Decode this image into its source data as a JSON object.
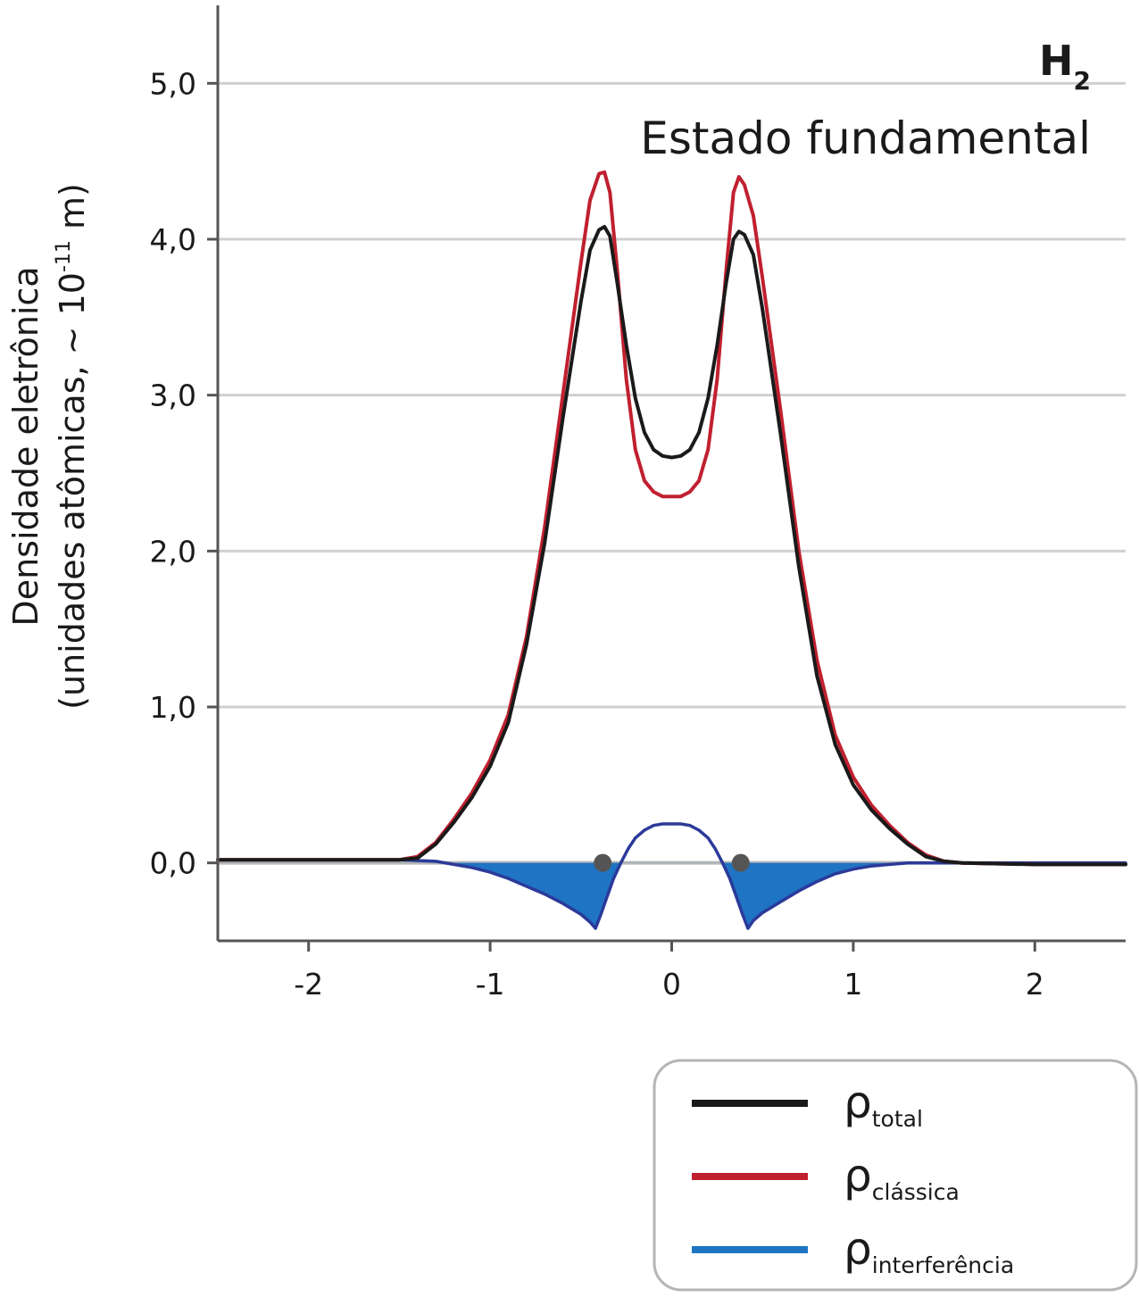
{
  "chart_data": {
    "type": "line",
    "title": "H",
    "title_subscript": "2",
    "subtitle": "Estado fundamental",
    "ylabel_line1": "Densidade eletrônica",
    "ylabel_line2": "(unidades atômicas, ~ 10",
    "ylabel_exponent": "-11",
    "ylabel_tail": " m)",
    "xlabel": "",
    "xlim": [
      -2.5,
      2.5
    ],
    "ylim": [
      -0.5,
      5.5
    ],
    "x_ticks": [
      -2,
      -1,
      0,
      1,
      2
    ],
    "x_tick_labels": [
      "-2",
      "-1",
      "0",
      "1",
      "2"
    ],
    "y_ticks": [
      0,
      1,
      2,
      3,
      4,
      5
    ],
    "y_tick_labels": [
      "0,0",
      "1,0",
      "2,0",
      "3,0",
      "4,0",
      "5,0"
    ],
    "grid": "horizontal",
    "legend_position": "below-right",
    "nuclei": [
      -0.38,
      0.38
    ],
    "series": [
      {
        "name": "ρ",
        "subscript": "total",
        "color": "#1a1a1a",
        "x": [
          -2.5,
          -2.0,
          -1.5,
          -1.4,
          -1.3,
          -1.2,
          -1.1,
          -1.0,
          -0.9,
          -0.8,
          -0.7,
          -0.6,
          -0.5,
          -0.45,
          -0.4,
          -0.37,
          -0.34,
          -0.3,
          -0.25,
          -0.2,
          -0.15,
          -0.1,
          -0.05,
          0.0,
          0.05,
          0.1,
          0.15,
          0.2,
          0.25,
          0.3,
          0.34,
          0.37,
          0.4,
          0.45,
          0.5,
          0.6,
          0.7,
          0.8,
          0.9,
          1.0,
          1.1,
          1.2,
          1.3,
          1.4,
          1.5,
          1.6,
          2.0,
          2.5
        ],
        "values": [
          0.02,
          0.02,
          0.02,
          0.03,
          0.12,
          0.26,
          0.42,
          0.62,
          0.9,
          1.4,
          2.05,
          2.85,
          3.6,
          3.93,
          4.06,
          4.08,
          4.02,
          3.72,
          3.32,
          2.98,
          2.76,
          2.65,
          2.61,
          2.6,
          2.61,
          2.65,
          2.76,
          2.98,
          3.32,
          3.72,
          4.0,
          4.05,
          4.03,
          3.9,
          3.55,
          2.75,
          1.9,
          1.2,
          0.76,
          0.5,
          0.34,
          0.22,
          0.12,
          0.04,
          0.01,
          0.0,
          -0.01,
          -0.01
        ]
      },
      {
        "name": "ρ",
        "subscript": "clássica",
        "color": "#c0202f",
        "x": [
          -2.5,
          -2.0,
          -1.5,
          -1.4,
          -1.3,
          -1.2,
          -1.1,
          -1.0,
          -0.9,
          -0.8,
          -0.7,
          -0.6,
          -0.5,
          -0.45,
          -0.4,
          -0.37,
          -0.34,
          -0.3,
          -0.25,
          -0.2,
          -0.15,
          -0.1,
          -0.05,
          0.0,
          0.05,
          0.1,
          0.15,
          0.2,
          0.25,
          0.3,
          0.34,
          0.37,
          0.4,
          0.45,
          0.5,
          0.6,
          0.7,
          0.8,
          0.9,
          1.0,
          1.1,
          1.2,
          1.3,
          1.4,
          1.5,
          1.6,
          2.0,
          2.5
        ],
        "values": [
          0.02,
          0.02,
          0.02,
          0.04,
          0.13,
          0.28,
          0.45,
          0.66,
          0.95,
          1.45,
          2.15,
          3.0,
          3.85,
          4.25,
          4.42,
          4.43,
          4.3,
          3.8,
          3.1,
          2.65,
          2.45,
          2.38,
          2.35,
          2.35,
          2.35,
          2.38,
          2.45,
          2.65,
          3.1,
          3.8,
          4.3,
          4.4,
          4.35,
          4.15,
          3.75,
          2.9,
          2.0,
          1.3,
          0.82,
          0.55,
          0.37,
          0.24,
          0.13,
          0.05,
          0.01,
          0.0,
          -0.01,
          -0.01
        ]
      },
      {
        "name": "ρ",
        "subscript": "interferência",
        "color": "#1f74c4",
        "line_color": "#2b3a99",
        "x": [
          -2.5,
          -2.0,
          -1.5,
          -1.3,
          -1.2,
          -1.1,
          -1.0,
          -0.9,
          -0.8,
          -0.7,
          -0.6,
          -0.5,
          -0.45,
          -0.42,
          -0.39,
          -0.36,
          -0.32,
          -0.28,
          -0.24,
          -0.2,
          -0.15,
          -0.1,
          -0.05,
          0.0,
          0.05,
          0.1,
          0.15,
          0.2,
          0.24,
          0.28,
          0.32,
          0.36,
          0.39,
          0.42,
          0.45,
          0.5,
          0.6,
          0.7,
          0.8,
          0.9,
          1.0,
          1.1,
          1.2,
          1.3,
          1.5,
          2.0,
          2.5
        ],
        "values": [
          0.02,
          0.02,
          0.02,
          0.01,
          -0.01,
          -0.03,
          -0.06,
          -0.1,
          -0.15,
          -0.2,
          -0.26,
          -0.33,
          -0.38,
          -0.42,
          -0.33,
          -0.23,
          -0.1,
          0.0,
          0.09,
          0.16,
          0.21,
          0.24,
          0.25,
          0.25,
          0.25,
          0.24,
          0.21,
          0.16,
          0.09,
          0.0,
          -0.1,
          -0.23,
          -0.33,
          -0.42,
          -0.37,
          -0.32,
          -0.25,
          -0.18,
          -0.12,
          -0.07,
          -0.04,
          -0.02,
          -0.01,
          0.0,
          0.0,
          0.0,
          0.0
        ]
      }
    ]
  }
}
